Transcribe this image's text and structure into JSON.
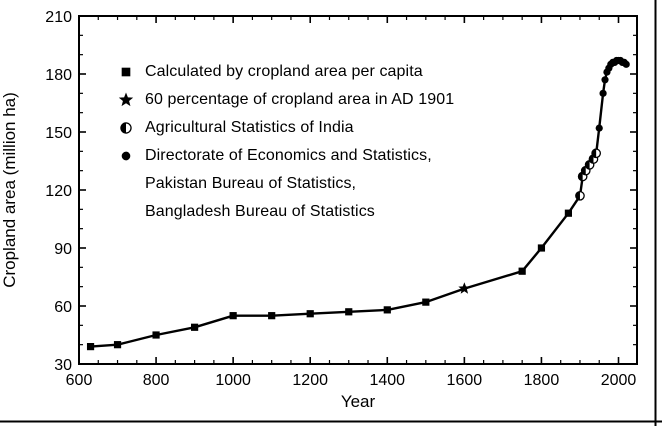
{
  "chart_data": {
    "type": "line",
    "title": "",
    "xlabel": "Year",
    "ylabel": "Cropland area (million ha)",
    "xlim": [
      600,
      2048
    ],
    "ylim": [
      30,
      210
    ],
    "x_major_ticks": [
      600,
      800,
      1000,
      1200,
      1400,
      1600,
      1800,
      2000
    ],
    "x_minor_step": 50,
    "y_major_ticks": [
      30,
      60,
      90,
      120,
      150,
      180,
      210
    ],
    "y_minor_step": 10,
    "grid": false,
    "legend_position": "upper-left-inside",
    "line_color": "#000000",
    "axis_color": "#000000",
    "series": [
      {
        "name": "Calculated by cropland area per capita",
        "marker": "filled-square",
        "points": [
          [
            630,
            39
          ],
          [
            700,
            40
          ],
          [
            800,
            45
          ],
          [
            900,
            49
          ],
          [
            1000,
            55
          ],
          [
            1100,
            55
          ],
          [
            1200,
            56
          ],
          [
            1300,
            57
          ],
          [
            1400,
            58
          ],
          [
            1500,
            62
          ],
          [
            1750,
            78
          ],
          [
            1800,
            90
          ],
          [
            1870,
            108
          ]
        ]
      },
      {
        "name": "60 percentage of cropland area in AD 1901",
        "marker": "filled-star",
        "points": [
          [
            1600,
            69
          ]
        ]
      },
      {
        "name": "Agricultural Statistics of India",
        "marker": "half-filled-circle",
        "points": [
          [
            1900,
            117
          ],
          [
            1907,
            127
          ],
          [
            1915,
            130
          ],
          [
            1925,
            133
          ],
          [
            1935,
            136
          ],
          [
            1942,
            139
          ]
        ]
      },
      {
        "name": "Directorate of Economics and Statistics, Pakistan Bureau of Statistics, Bangladesh Bureau of Statistics",
        "marker": "filled-circle",
        "points": [
          [
            1950,
            152
          ],
          [
            1960,
            170
          ],
          [
            1965,
            177
          ],
          [
            1970,
            181
          ],
          [
            1975,
            183
          ],
          [
            1980,
            185
          ],
          [
            1985,
            186
          ],
          [
            1990,
            186
          ],
          [
            1995,
            187
          ],
          [
            2000,
            187
          ],
          [
            2005,
            187
          ],
          [
            2010,
            186
          ],
          [
            2015,
            186
          ],
          [
            2020,
            185
          ]
        ]
      }
    ]
  },
  "legend": {
    "rows": [
      {
        "marker": "filled-square",
        "label": "Calculated by cropland area per capita"
      },
      {
        "marker": "filled-star",
        "label": "60 percentage of cropland area in AD 1901"
      },
      {
        "marker": "half-filled-circle",
        "label": "Agricultural Statistics of India"
      },
      {
        "marker": "filled-circle",
        "label": "Directorate of Economics and Statistics,"
      },
      {
        "marker": "none",
        "label": "Pakistan Bureau of Statistics,"
      },
      {
        "marker": "none",
        "label": "Bangladesh Bureau of Statistics"
      }
    ]
  },
  "frame": {
    "right_border_color": "#000000",
    "bottom_border_color": "#000000"
  }
}
